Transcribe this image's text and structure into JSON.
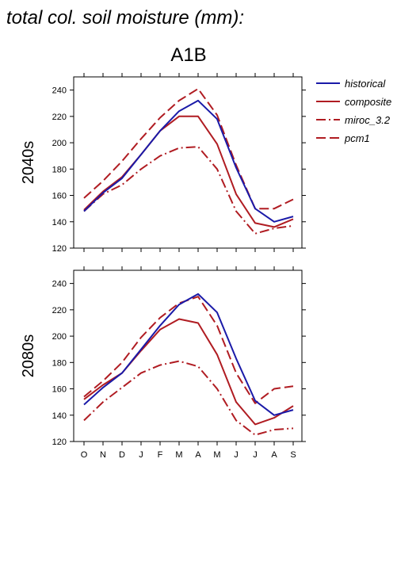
{
  "title": "total col. soil moisture (mm):",
  "scenario": "A1B",
  "colors": {
    "historical": "#1a1aa8",
    "models": "#b01c22"
  },
  "legend": [
    {
      "name": "historical",
      "color": "#1a1aa8",
      "dash": "solid"
    },
    {
      "name": "composite",
      "color": "#b01c22",
      "dash": "solid"
    },
    {
      "name": "miroc_3.2",
      "color": "#b01c22",
      "dash": "dashdot"
    },
    {
      "name": "pcm1",
      "color": "#b01c22",
      "dash": "dashed"
    }
  ],
  "chart_data": [
    {
      "type": "line",
      "panel_label": "2040s",
      "categories": [
        "O",
        "N",
        "D",
        "J",
        "F",
        "M",
        "A",
        "M",
        "J",
        "J",
        "A",
        "S"
      ],
      "ylim": [
        120,
        250
      ],
      "yticks": [
        120,
        140,
        160,
        180,
        200,
        220,
        240
      ],
      "series": [
        {
          "name": "historical",
          "values": [
            148,
            162,
            173,
            191,
            209,
            224,
            232,
            218,
            181,
            150,
            140,
            144
          ]
        },
        {
          "name": "composite",
          "values": [
            149,
            163,
            174,
            191,
            209,
            220,
            220,
            199,
            161,
            139,
            136,
            142
          ]
        },
        {
          "name": "miroc_3.2",
          "values": [
            148,
            161,
            168,
            180,
            190,
            196,
            197,
            180,
            148,
            131,
            135,
            137
          ]
        },
        {
          "name": "pcm1",
          "values": [
            158,
            171,
            186,
            203,
            219,
            232,
            241,
            221,
            183,
            150,
            150,
            157
          ]
        }
      ]
    },
    {
      "type": "line",
      "panel_label": "2080s",
      "categories": [
        "O",
        "N",
        "D",
        "J",
        "F",
        "M",
        "A",
        "M",
        "J",
        "J",
        "A",
        "S"
      ],
      "ylim": [
        120,
        250
      ],
      "yticks": [
        120,
        140,
        160,
        180,
        200,
        220,
        240
      ],
      "series": [
        {
          "name": "historical",
          "values": [
            148,
            161,
            172,
            190,
            208,
            224,
            232,
            218,
            183,
            151,
            140,
            144
          ]
        },
        {
          "name": "composite",
          "values": [
            152,
            163,
            172,
            189,
            205,
            213,
            210,
            186,
            150,
            133,
            138,
            147
          ]
        },
        {
          "name": "miroc_3.2",
          "values": [
            136,
            150,
            161,
            172,
            178,
            181,
            177,
            160,
            136,
            125,
            129,
            130
          ]
        },
        {
          "name": "pcm1",
          "values": [
            154,
            166,
            180,
            199,
            214,
            225,
            230,
            208,
            172,
            149,
            160,
            162
          ]
        }
      ]
    }
  ]
}
